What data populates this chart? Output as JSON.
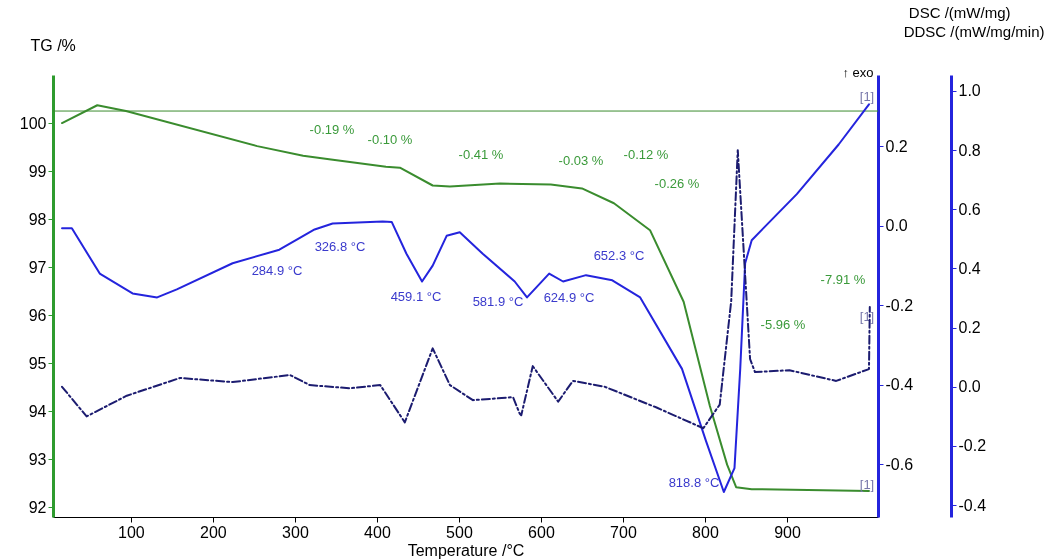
{
  "chart_data": {
    "type": "line",
    "xlabel": "Temperature /°C",
    "ylabel": "TG /%",
    "y2label": "DSC /(mW/mg)",
    "y3label": "DDSC /(mW/mg/min)",
    "xlim": [
      5,
      1011
    ],
    "xticks": [
      100,
      200,
      300,
      400,
      500,
      600,
      700,
      800,
      900
    ],
    "ylim": [
      91.8,
      101.0
    ],
    "yticks": [
      92,
      93,
      94,
      95,
      96,
      97,
      98,
      99,
      100
    ],
    "y2lim": [
      -0.733,
      0.38
    ],
    "y2ticks": [
      -0.6,
      -0.4,
      -0.2,
      {
        "value": 0,
        "label": "0.0"
      },
      0.2
    ],
    "y3lim": [
      -0.44,
      1.054
    ],
    "y3ticks": [
      -0.4,
      -0.2,
      {
        "value": 0,
        "label": "0.0"
      },
      0.2,
      0.4,
      0.6,
      0.8,
      {
        "value": 1,
        "label": "1.0"
      }
    ],
    "grid": false,
    "series": [
      {
        "color": "#3a8c2e",
        "x": [
          16,
          59,
          94,
          254,
          310,
          344,
          411,
          428,
          468,
          489,
          550,
          612,
          650,
          689,
          733,
          774,
          806,
          827,
          838,
          857,
          1000
        ],
        "values": [
          100.0,
          100.37,
          100.25,
          99.52,
          99.32,
          99.24,
          99.09,
          99.07,
          98.7,
          98.68,
          98.74,
          98.72,
          98.64,
          98.33,
          97.77,
          96.28,
          94.11,
          92.89,
          92.42,
          92.38,
          92.34
        ]
      },
      {
        "color": "#2424dd",
        "axis": "y2",
        "x": [
          16,
          28,
          62,
          102,
          132,
          156,
          224,
          281,
          306,
          324,
          346,
          407,
          418,
          436,
          455,
          468,
          485,
          501,
          529,
          568,
          583,
          610,
          627,
          655,
          687,
          721,
          772,
          801,
          823,
          836,
          843,
          849,
          857,
          912,
          963,
          1000
        ],
        "values": [
          -0.006,
          -0.006,
          -0.12,
          -0.17,
          -0.18,
          -0.16,
          -0.094,
          -0.06,
          -0.03,
          -0.009,
          0.006,
          0.011,
          0.01,
          -0.07,
          -0.14,
          -0.1,
          -0.025,
          -0.016,
          -0.07,
          -0.14,
          -0.18,
          -0.12,
          -0.14,
          -0.124,
          -0.137,
          -0.18,
          -0.36,
          -0.54,
          -0.67,
          -0.61,
          -0.36,
          -0.094,
          -0.036,
          0.08,
          0.205,
          0.306
        ]
      },
      {
        "color": "#1c1c70",
        "axis": "y3",
        "line_style": "dashed",
        "x": [
          16,
          46,
          95,
          160,
          224,
          294,
          318,
          367,
          404,
          434,
          468,
          489,
          517,
          566,
          574,
          576,
          590,
          621,
          639,
          678,
          741,
          798,
          818,
          832,
          840,
          855,
          861,
          903,
          960,
          1000,
          1001
        ],
        "values": [
          0.0,
          -0.1,
          -0.03,
          0.03,
          0.016,
          0.04,
          0.006,
          -0.005,
          0.006,
          -0.12,
          0.13,
          0.006,
          -0.045,
          -0.035,
          -0.09,
          -0.096,
          0.07,
          -0.05,
          0.02,
          0.0,
          -0.07,
          -0.14,
          -0.06,
          0.29,
          0.8,
          0.094,
          0.05,
          0.056,
          0.02,
          0.06,
          0.27
        ]
      }
    ],
    "ref_lines": [
      {
        "axis": "y",
        "value": 100.25,
        "color": "#3a8c2e"
      }
    ],
    "annotations": [
      "-0.19 %",
      "-0.10 %",
      "-0.41 %",
      "-0.03 %",
      "-0.12 %",
      "-0.26 %",
      "-5.96 %",
      "-7.91 %",
      "284.9 °C",
      "326.8 °C",
      "459.1 °C",
      "581.9 °C",
      "624.9 °C",
      "652.3 °C",
      "818.8 °C",
      "↑ exo",
      "[1]",
      "[1]",
      "[1]"
    ]
  }
}
